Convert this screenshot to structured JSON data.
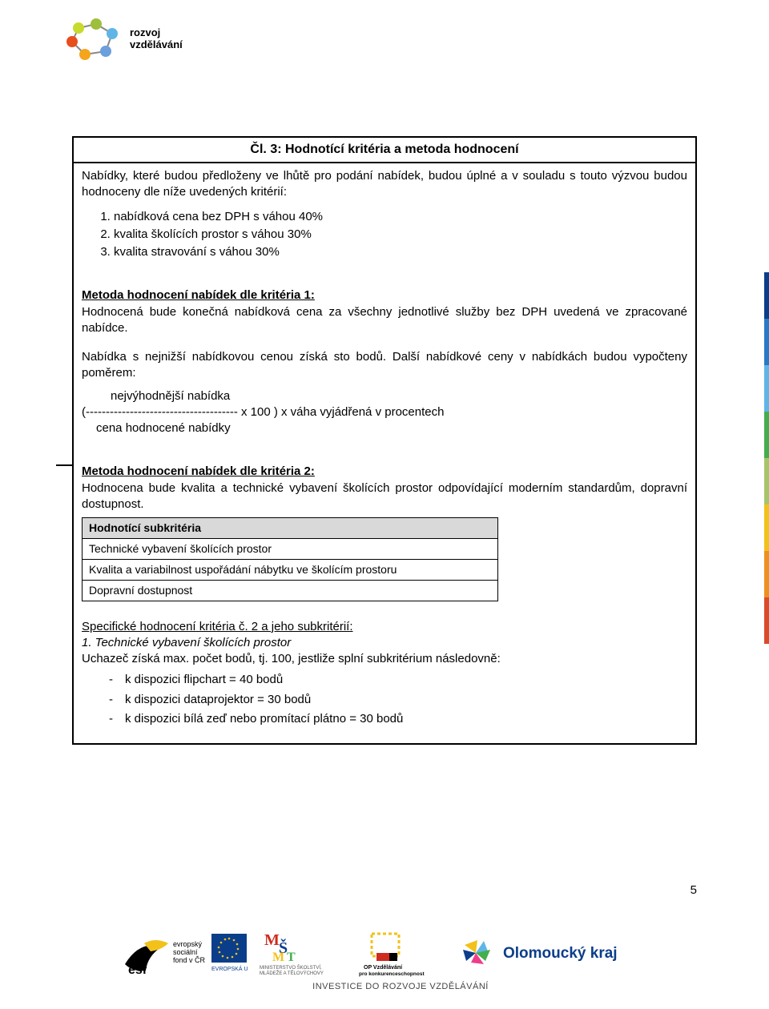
{
  "header": {
    "line1": "rozvoj",
    "line2": "vzdělávání"
  },
  "article": {
    "title": "Čl. 3: Hodnotící kritéria a metoda hodnocení",
    "intro": "Nabídky, které budou předloženy ve lhůtě pro podání nabídek, budou úplné a v souladu s touto výzvou budou hodnoceny dle níže uvedených kritérií:",
    "criteria": [
      "nabídková cena bez DPH s váhou 40%",
      "kvalita školících prostor s váhou 30%",
      "kvalita stravování s váhou 30%"
    ],
    "method1": {
      "heading": "Metoda hodnocení nabídek dle kritéria 1:",
      "p1": "Hodnocená bude konečná nabídková cena za všechny jednotlivé služby bez DPH uvedená ve zpracované nabídce.",
      "p2": "Nabídka s nejnižší nabídkovou cenou získá sto bodů. Další nabídkové ceny v nabídkách budou vypočteny poměrem:",
      "formula_top": "nejvýhodnější nabídka",
      "formula_mid": "(-------------------------------------- x 100 )  x  váha vyjádřená v procentech",
      "formula_bot": "cena hodnocené nabídky"
    },
    "method2": {
      "heading": "Metoda hodnocení nabídek dle kritéria 2:",
      "p1": "Hodnocena bude kvalita a technické vybavení školících prostor odpovídající moderním standardům, dopravní dostupnost.",
      "subtable_header": "Hodnotící subkritéria",
      "subtable_rows": [
        "Technické vybavení školících prostor",
        "Kvalita a variabilnost uspořádání nábytku ve školícím prostoru",
        "Dopravní dostupnost"
      ]
    },
    "specific": {
      "heading": "Specifické hodnocení kritéria č. 2 a jeho subkritérií:",
      "subtitle": "1. Technické vybavení školících prostor",
      "intro": "Uchazeč získá max. počet bodů, tj. 100, jestliže splní subkritérium následovně:",
      "bullets": [
        "k dispozici flipchart = 40 bodů",
        "k dispozici dataprojektor = 30 bodů",
        "k dispozici bílá zeď nebo promítací plátno = 30 bodů"
      ]
    }
  },
  "side_stripe_colors": [
    "#0b3e8a",
    "#2a79c7",
    "#5fb6e6",
    "#44ae4f",
    "#a6c56a",
    "#f2c21a",
    "#ee9020",
    "#d94b2b"
  ],
  "page_number": "5",
  "footer": {
    "caption": "INVESTICE DO ROZVOJE VZDĚLÁVÁNÍ",
    "logos": {
      "esf": {
        "text_top": "evropský",
        "text_mid": "sociální",
        "text_bot": "fond v ČR",
        "sub": "EVROPSKÁ UNIE",
        "blue": "#0b3e8a",
        "yellow": "#f2c21a"
      },
      "msmt": {
        "colors": [
          "#cf2b1e",
          "#0b3e8a",
          "#f2c21a",
          "#44ae4f"
        ],
        "cap1": "MINISTERSTVO ŠKOLSTVÍ,",
        "cap2": "MLÁDEŽE A TĚLOVÝCHOVY"
      },
      "opvk": {
        "colors": [
          "#f2c21a",
          "#cf2b1e",
          "#000000"
        ],
        "cap1": "OP Vzdělávání",
        "cap2": "pro konkurenceschopnost"
      },
      "olomouc": {
        "text": "Olomoucký kraj",
        "colors": [
          "#5fb6e6",
          "#44ae4f",
          "#ee3d8b",
          "#0b3e8a",
          "#f2c21a"
        ]
      }
    }
  }
}
